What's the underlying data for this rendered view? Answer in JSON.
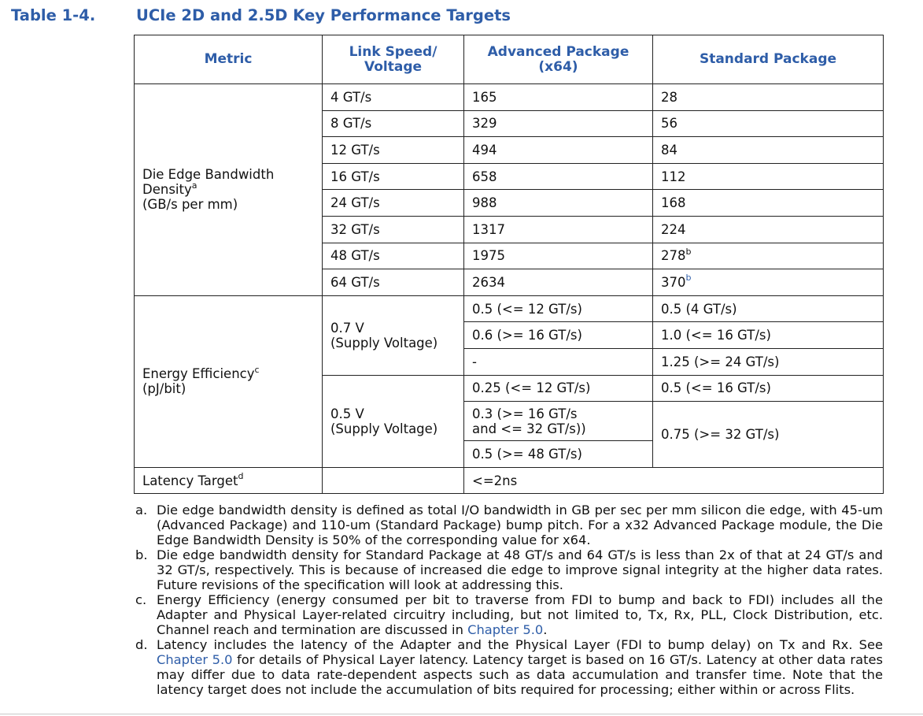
{
  "caption": {
    "number": "Table 1-4.",
    "title": "UCIe 2D and 2.5D Key Performance Targets"
  },
  "headers": {
    "metric": "Metric",
    "link_speed_line1": "Link Speed/",
    "link_speed_line2": "Voltage",
    "advanced_line1": "Advanced Package",
    "advanced_line2": "(x64)",
    "standard": "Standard Package"
  },
  "bandwidth": {
    "label_line1": "Die Edge Bandwidth",
    "label_line2": "Density",
    "label_sup": "a",
    "label_line3": "(GB/s per mm)",
    "rows": [
      {
        "speed": "4 GT/s",
        "advanced": "165",
        "standard": "28",
        "sup": ""
      },
      {
        "speed": "8 GT/s",
        "advanced": "329",
        "standard": "56",
        "sup": ""
      },
      {
        "speed": "12 GT/s",
        "advanced": "494",
        "standard": "84",
        "sup": ""
      },
      {
        "speed": "16 GT/s",
        "advanced": "658",
        "standard": "112",
        "sup": ""
      },
      {
        "speed": "24 GT/s",
        "advanced": "988",
        "standard": "168",
        "sup": ""
      },
      {
        "speed": "32 GT/s",
        "advanced": "1317",
        "standard": "224",
        "sup": ""
      },
      {
        "speed": "48 GT/s",
        "advanced": "1975",
        "standard": "278",
        "sup": "b"
      },
      {
        "speed": "64 GT/s",
        "advanced": "2634",
        "standard": "370",
        "sup": "b"
      }
    ]
  },
  "energy": {
    "label_line1": "Energy Efficiency",
    "label_sup": "c",
    "label_line2": "(pJ/bit)",
    "v07_line1": "0.7 V",
    "v07_line2": "(Supply Voltage)",
    "v07_adv": [
      "0.5 (<= 12 GT/s)",
      "0.6 (>= 16 GT/s)",
      "-"
    ],
    "v07_std": [
      "0.5 (4 GT/s)",
      "1.0 (<= 16 GT/s)",
      "1.25 (>= 24 GT/s)"
    ],
    "v05_line1": "0.5 V",
    "v05_line2": "(Supply Voltage)",
    "v05_adv_1": "0.25 (<= 12 GT/s)",
    "v05_adv_2_line1": "0.3 (>= 16 GT/s",
    "v05_adv_2_line2": "and <= 32 GT/s))",
    "v05_adv_3": "0.5 (>= 48 GT/s)",
    "v05_std_1": "0.5 (<= 16 GT/s)",
    "v05_std_2": "0.75 (>= 32 GT/s)"
  },
  "latency": {
    "label": "Latency Target",
    "label_sup": "d",
    "speed": "",
    "value": "<=2ns"
  },
  "notes": {
    "a": {
      "label": "a.",
      "text": "Die edge bandwidth density is defined as total I/O bandwidth in GB per sec per mm silicon die edge, with 45-um (Advanced Package) and 110-um (Standard Package) bump pitch. For a x32 Advanced Package module, the Die Edge Bandwidth Density is 50% of the corresponding value for x64."
    },
    "b": {
      "label": "b.",
      "text": "Die edge bandwidth density for Standard Package at 48 GT/s and 64 GT/s is less than 2x of that at 24 GT/s and 32 GT/s, respectively. This is because of increased die edge to improve signal integrity at the higher data rates. Future revisions of the specification will look at addressing this."
    },
    "c": {
      "label": "c.",
      "text_before": "Energy Efficiency (energy consumed per bit to traverse from FDI to bump and back to FDI) includes all the Adapter and Physical Layer-related circuitry including, but not limited to, Tx, Rx, PLL, Clock Distribution, etc. Channel reach and termination are discussed in ",
      "link": "Chapter 5.0",
      "text_after": "."
    },
    "d": {
      "label": "d.",
      "text_before": "Latency includes the latency of the Adapter and the Physical Layer (FDI to bump delay) on Tx and Rx. See ",
      "link": "Chapter 5.0",
      "text_after": " for details of Physical Layer latency. Latency target is based on 16 GT/s. Latency at other data rates may differ due to data rate-dependent aspects such as data accumulation and transfer time. Note that the latency target does not include the accumulation of bits required for processing; either within or across Flits."
    }
  },
  "colors": {
    "heading": "#2e5da8",
    "text": "#111111",
    "border": "#222222"
  }
}
